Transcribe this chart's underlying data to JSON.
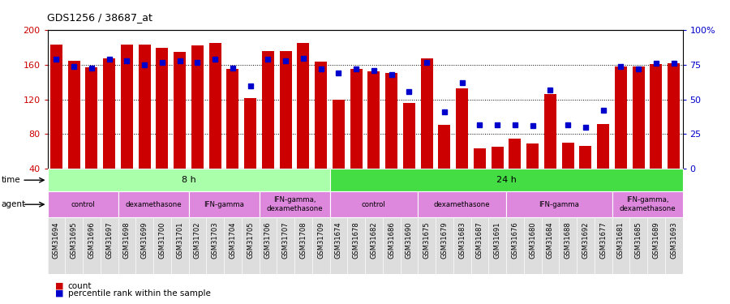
{
  "title": "GDS1256 / 38687_at",
  "samples": [
    "GSM31694",
    "GSM31695",
    "GSM31696",
    "GSM31697",
    "GSM31698",
    "GSM31699",
    "GSM31700",
    "GSM31701",
    "GSM31702",
    "GSM31703",
    "GSM31704",
    "GSM31705",
    "GSM31706",
    "GSM31707",
    "GSM31708",
    "GSM31709",
    "GSM31674",
    "GSM31678",
    "GSM31682",
    "GSM31686",
    "GSM31690",
    "GSM31675",
    "GSM31679",
    "GSM31683",
    "GSM31687",
    "GSM31691",
    "GSM31676",
    "GSM31680",
    "GSM31684",
    "GSM31688",
    "GSM31692",
    "GSM31677",
    "GSM31681",
    "GSM31685",
    "GSM31689",
    "GSM31693"
  ],
  "counts": [
    184,
    165,
    157,
    168,
    184,
    184,
    180,
    175,
    183,
    185,
    155,
    122,
    176,
    176,
    185,
    164,
    120,
    155,
    153,
    151,
    116,
    168,
    91,
    133,
    64,
    65,
    75,
    69,
    126,
    70,
    66,
    92,
    158,
    158,
    161,
    162
  ],
  "percentiles": [
    79,
    74,
    73,
    79,
    78,
    75,
    77,
    78,
    77,
    79,
    73,
    60,
    79,
    78,
    80,
    72,
    69,
    72,
    71,
    68,
    56,
    77,
    41,
    62,
    32,
    32,
    32,
    31,
    57,
    32,
    30,
    42,
    74,
    72,
    76,
    76
  ],
  "ylim_left": [
    40,
    200
  ],
  "ylim_right": [
    0,
    100
  ],
  "yticks_left": [
    40,
    80,
    120,
    160,
    200
  ],
  "yticks_right": [
    0,
    25,
    50,
    75,
    100
  ],
  "ytick_labels_right": [
    "0",
    "25",
    "50",
    "75",
    "100%"
  ],
  "bar_color": "#cc0000",
  "dot_color": "#0000cc",
  "time_8h_color": "#aaffaa",
  "time_24h_color": "#44dd44",
  "agent_color": "#dd88dd",
  "time_groups": [
    {
      "label": "8 h",
      "start": 0,
      "end": 15
    },
    {
      "label": "24 h",
      "start": 16,
      "end": 35
    }
  ],
  "agent_groups": [
    {
      "label": "control",
      "start": 0,
      "end": 3
    },
    {
      "label": "dexamethasone",
      "start": 4,
      "end": 7
    },
    {
      "label": "IFN-gamma",
      "start": 8,
      "end": 11
    },
    {
      "label": "IFN-gamma,\ndexamethasone",
      "start": 12,
      "end": 15
    },
    {
      "label": "control",
      "start": 16,
      "end": 20
    },
    {
      "label": "dexamethasone",
      "start": 21,
      "end": 25
    },
    {
      "label": "IFN-gamma",
      "start": 26,
      "end": 31
    },
    {
      "label": "IFN-gamma,\ndexamethasone",
      "start": 32,
      "end": 35
    }
  ],
  "legend_count_label": "count",
  "legend_pct_label": "percentile rank within the sample"
}
